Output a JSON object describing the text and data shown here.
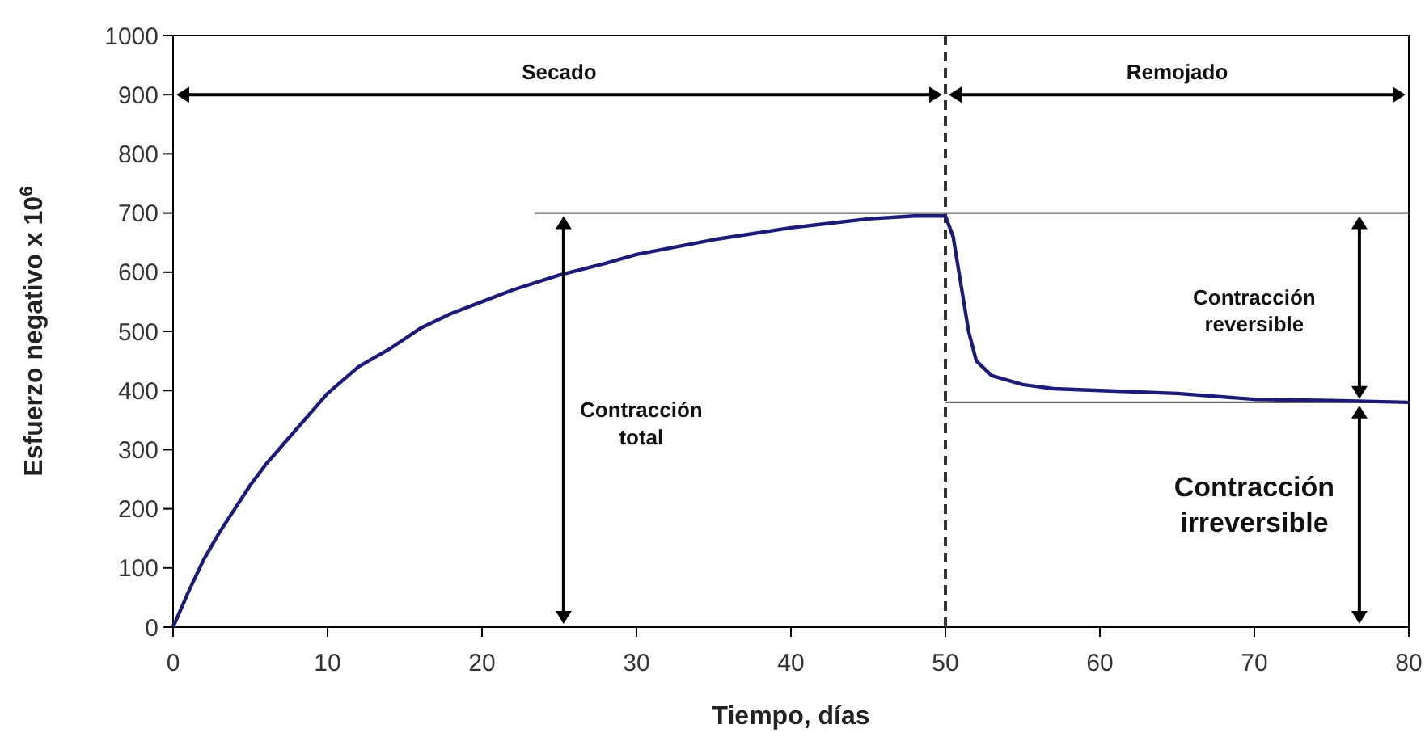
{
  "chart_data": {
    "type": "line",
    "xlabel": "Tiempo, días",
    "ylabel": "Esfuerzo negativo x 10$^{6}$",
    "xlim": [
      0,
      80
    ],
    "xticks": [
      0,
      10,
      20,
      30,
      40,
      50,
      60,
      70,
      80
    ],
    "ylim": [
      0,
      1000
    ],
    "yticks": [
      0,
      100,
      200,
      300,
      400,
      500,
      600,
      700,
      800,
      900,
      1000
    ],
    "marker": "none",
    "line_style": "solid",
    "series": [
      {
        "color": "#1c1c78",
        "x": [
          0,
          1,
          2,
          3,
          4,
          5,
          6,
          7,
          8,
          9,
          10,
          12,
          14,
          16,
          18,
          20,
          22,
          25,
          28,
          30,
          35,
          40,
          45,
          48,
          50,
          50.5,
          51,
          51.5,
          52,
          53,
          55,
          57,
          60,
          65,
          70,
          75,
          80
        ],
        "values": [
          0,
          60,
          115,
          160,
          200,
          240,
          275,
          305,
          335,
          365,
          395,
          440,
          470,
          505,
          530,
          550,
          570,
          595,
          615,
          630,
          655,
          675,
          690,
          695,
          695,
          660,
          580,
          500,
          450,
          425,
          410,
          403,
          400,
          395,
          385,
          383,
          380
        ]
      }
    ],
    "ref_lines": [
      {
        "axis": "x",
        "value": 50,
        "line_style": "dashed",
        "color": "#333333"
      },
      {
        "axis": "y",
        "value": 700,
        "color": "#666666"
      },
      {
        "axis": "y",
        "value": 380,
        "color": "#666666"
      }
    ],
    "annotations": [
      "Secado",
      "Remojado",
      "Contracción total",
      "Contracción reversible",
      "Contracción irreversible"
    ]
  }
}
